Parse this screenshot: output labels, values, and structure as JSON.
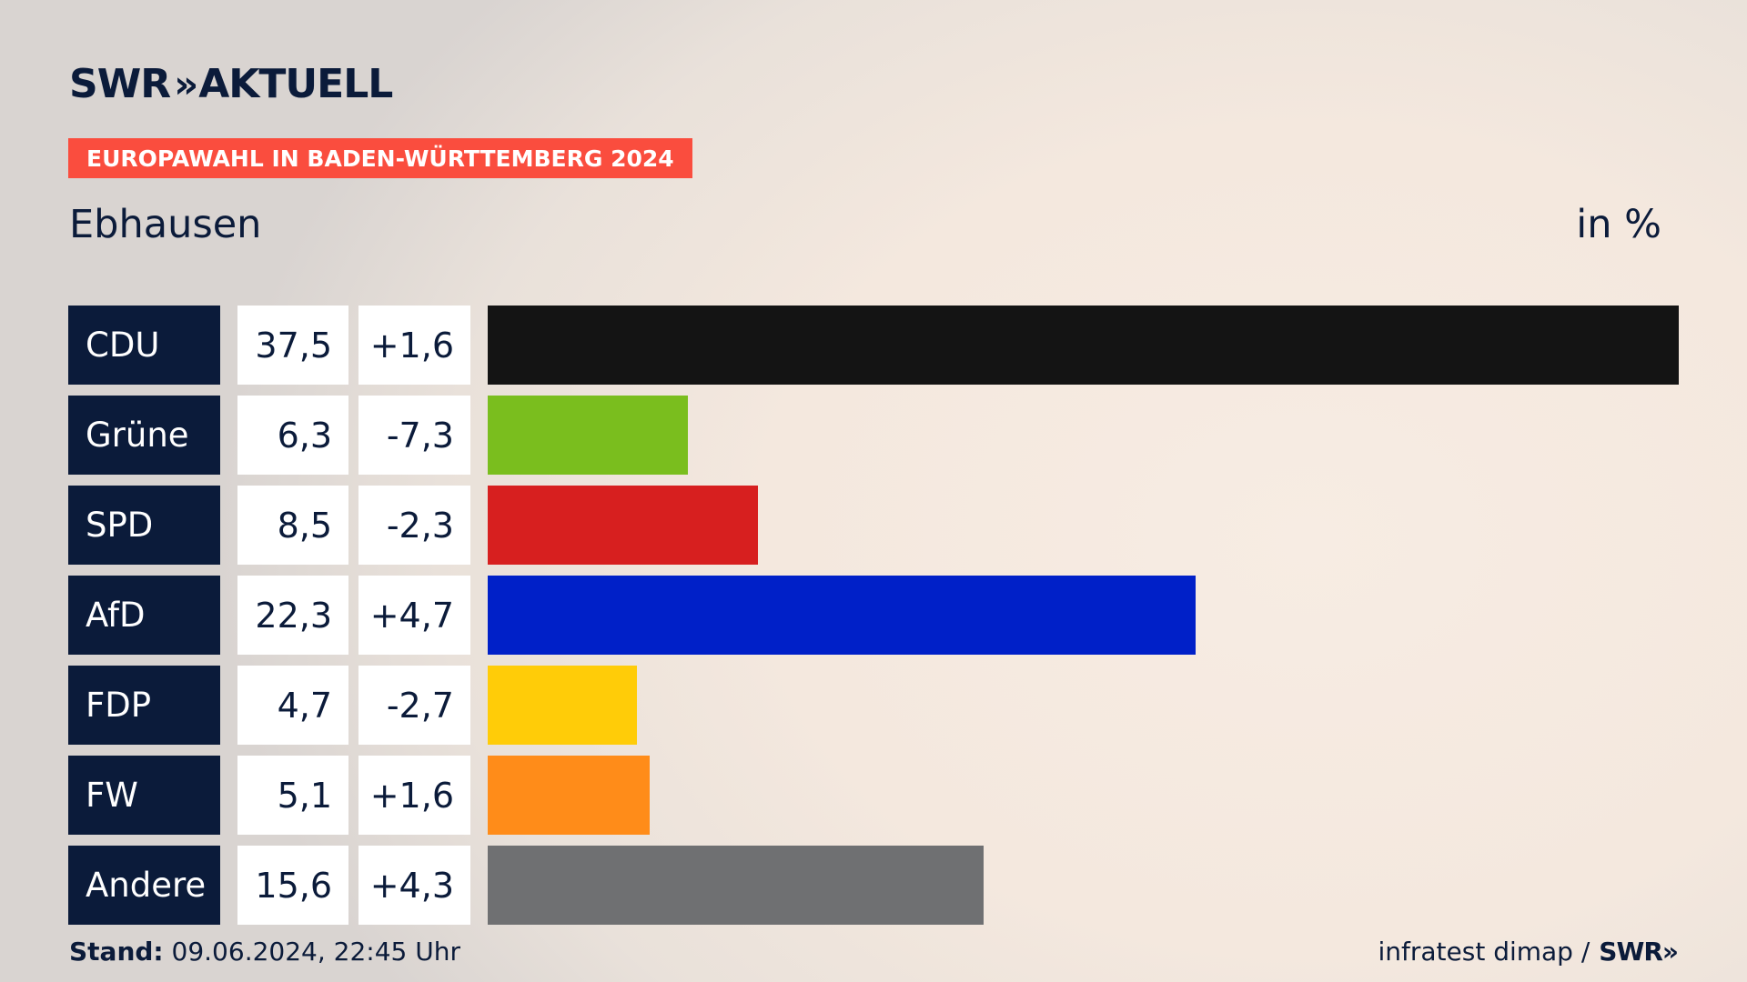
{
  "header": {
    "logo_text": "SWR",
    "logo_chevrons": "»",
    "logo_suffix": "AKTUELL",
    "badge": "EUROPAWAHL IN BADEN-WÜRTTEMBERG 2024",
    "region": "Ebhausen",
    "unit": "in %"
  },
  "chart_data": {
    "type": "bar",
    "orientation": "horizontal",
    "categories": [
      "CDU",
      "Grüne",
      "SPD",
      "AfD",
      "FDP",
      "FW",
      "Andere"
    ],
    "values": [
      37.5,
      6.3,
      8.5,
      22.3,
      4.7,
      5.1,
      15.6
    ],
    "value_labels": [
      "37,5",
      "6,3",
      "8,5",
      "22,3",
      "4,7",
      "5,1",
      "15,6"
    ],
    "diff_labels": [
      "+1,6",
      "-7,3",
      "-2,3",
      "+4,7",
      "-2,7",
      "+1,6",
      "+4,3"
    ],
    "colors": [
      "#141414",
      "#7abe1e",
      "#d71f1f",
      "#0020c8",
      "#ffcc08",
      "#ff8c19",
      "#6f7072"
    ],
    "xlim": [
      0,
      37.5
    ]
  },
  "footer": {
    "stand_label": "Stand:",
    "stand_value": "09.06.2024, 22:45 Uhr",
    "source": "infratest dimap /",
    "source_logo": "SWR»"
  }
}
